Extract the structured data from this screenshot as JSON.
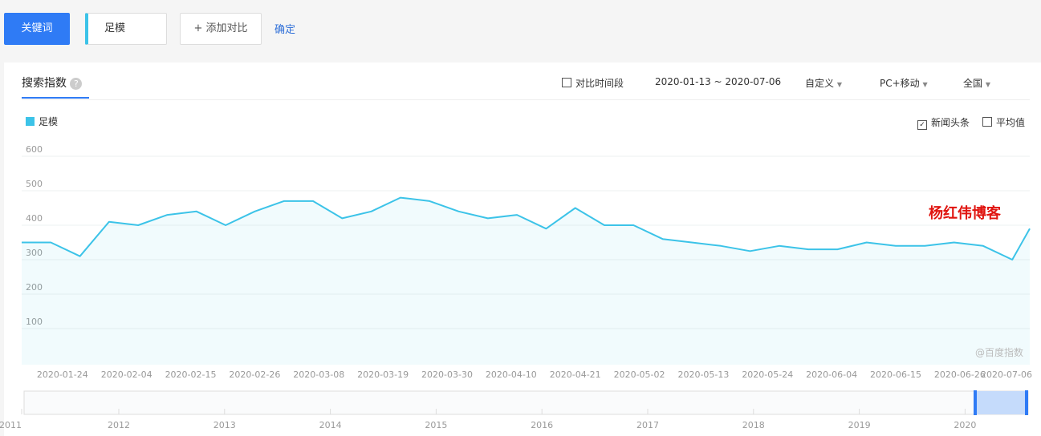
{
  "toolbar": {
    "keyword_button": "关键词",
    "keyword": "足模",
    "add": "添加对比",
    "confirm": "确定"
  },
  "panel": {
    "tab": "搜索指数",
    "compare": "对比时间段",
    "date_range": "2020-01-13 ~ 2020-07-06",
    "custom": "自定义",
    "device": "PC+移动",
    "region": "全国"
  },
  "options": {
    "news": "新闻头条",
    "average": "平均值"
  },
  "watermark": "杨红伟博客",
  "source": "@百度指数",
  "timeline": {
    "years": [
      "2011",
      "2012",
      "2013",
      "2014",
      "2015",
      "2016",
      "2017",
      "2018",
      "2019",
      "2020"
    ]
  },
  "chart_data": {
    "type": "line",
    "x": [
      "2020-01-17",
      "2020-01-22",
      "2020-01-27",
      "2020-02-01",
      "2020-02-06",
      "2020-02-11",
      "2020-02-16",
      "2020-02-21",
      "2020-02-26",
      "2020-03-02",
      "2020-03-07",
      "2020-03-12",
      "2020-03-17",
      "2020-03-22",
      "2020-03-27",
      "2020-04-01",
      "2020-04-06",
      "2020-04-11",
      "2020-04-16",
      "2020-04-21",
      "2020-04-26",
      "2020-05-01",
      "2020-05-06",
      "2020-05-11",
      "2020-05-16",
      "2020-05-21",
      "2020-05-26",
      "2020-05-31",
      "2020-06-05",
      "2020-06-10",
      "2020-06-15",
      "2020-06-20",
      "2020-06-25",
      "2020-06-30",
      "2020-07-05",
      "2020-07-08"
    ],
    "series": [
      {
        "name": "足模",
        "color": "#3cc3e8",
        "values": [
          350,
          350,
          310,
          410,
          400,
          430,
          440,
          400,
          440,
          470,
          470,
          420,
          440,
          480,
          470,
          440,
          420,
          430,
          390,
          450,
          400,
          400,
          360,
          350,
          340,
          325,
          340,
          330,
          330,
          350,
          340,
          340,
          350,
          340,
          300,
          390
        ]
      }
    ],
    "xlim": [
      "2020-01-17",
      "2020-07-08"
    ],
    "xticks": [
      "2020-01-24",
      "2020-02-04",
      "2020-02-15",
      "2020-02-26",
      "2020-03-08",
      "2020-03-19",
      "2020-03-30",
      "2020-04-10",
      "2020-04-21",
      "2020-05-02",
      "2020-05-13",
      "2020-05-24",
      "2020-06-04",
      "2020-06-15",
      "2020-06-26",
      "2020-07-06"
    ],
    "ylim": [
      0,
      600
    ],
    "yticks": [
      100,
      200,
      300,
      400,
      500,
      600
    ],
    "grid": true
  }
}
